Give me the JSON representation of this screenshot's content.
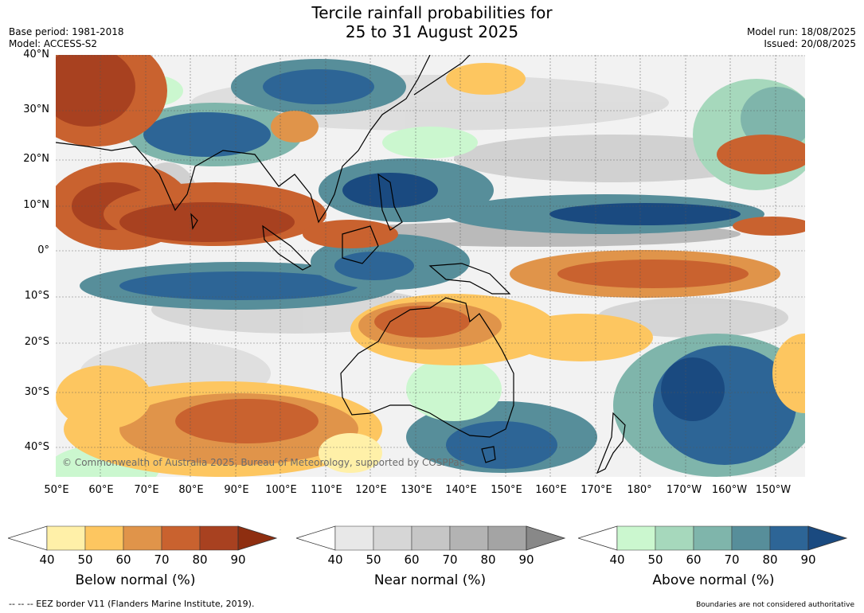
{
  "header": {
    "title_line1": "Tercile rainfall probabilities for",
    "title_line2": "25 to 31 August 2025",
    "base_period": "Base period: 1981-2018",
    "model": "Model: ACCESS-S2",
    "model_run": "Model run: 18/08/2025",
    "issued": "Issued: 20/08/2025"
  },
  "map": {
    "lat_labels": [
      "40°N",
      "30°N",
      "20°N",
      "10°N",
      "0°",
      "10°S",
      "20°S",
      "30°S",
      "40°S"
    ],
    "lon_labels": [
      "50°E",
      "60°E",
      "70°E",
      "80°E",
      "90°E",
      "100°E",
      "110°E",
      "120°E",
      "130°E",
      "140°E",
      "150°E",
      "160°E",
      "170°E",
      "180°",
      "170°W",
      "160°W",
      "150°W"
    ],
    "copyright": "© Commonwealth of Australia 2025, Bureau of Meteorology, supported by COSPPac",
    "colors": {
      "below": [
        "#fff0a8",
        "#fdc660",
        "#e0944a",
        "#c9622f",
        "#a84120",
        "#8e2e10"
      ],
      "near": [
        "#e8e8e8",
        "#d6d6d6",
        "#c6c6c6",
        "#b3b3b3",
        "#a4a4a4",
        "#888888"
      ],
      "above": [
        "#cbf7cf",
        "#a6d8bc",
        "#7fb5ab",
        "#578e9a",
        "#2d6596",
        "#1a4a80"
      ]
    }
  },
  "colorbars": {
    "ticks": [
      "40",
      "50",
      "60",
      "70",
      "80",
      "90"
    ],
    "below_label": "Below normal (%)",
    "near_label": "Near normal (%)",
    "above_label": "Above normal (%)"
  },
  "footer": {
    "eez": "--  --  -- EEZ border V11 (Flanders Marine Institute, 2019).",
    "disclaimer": "Boundaries are not considered authoritative"
  }
}
